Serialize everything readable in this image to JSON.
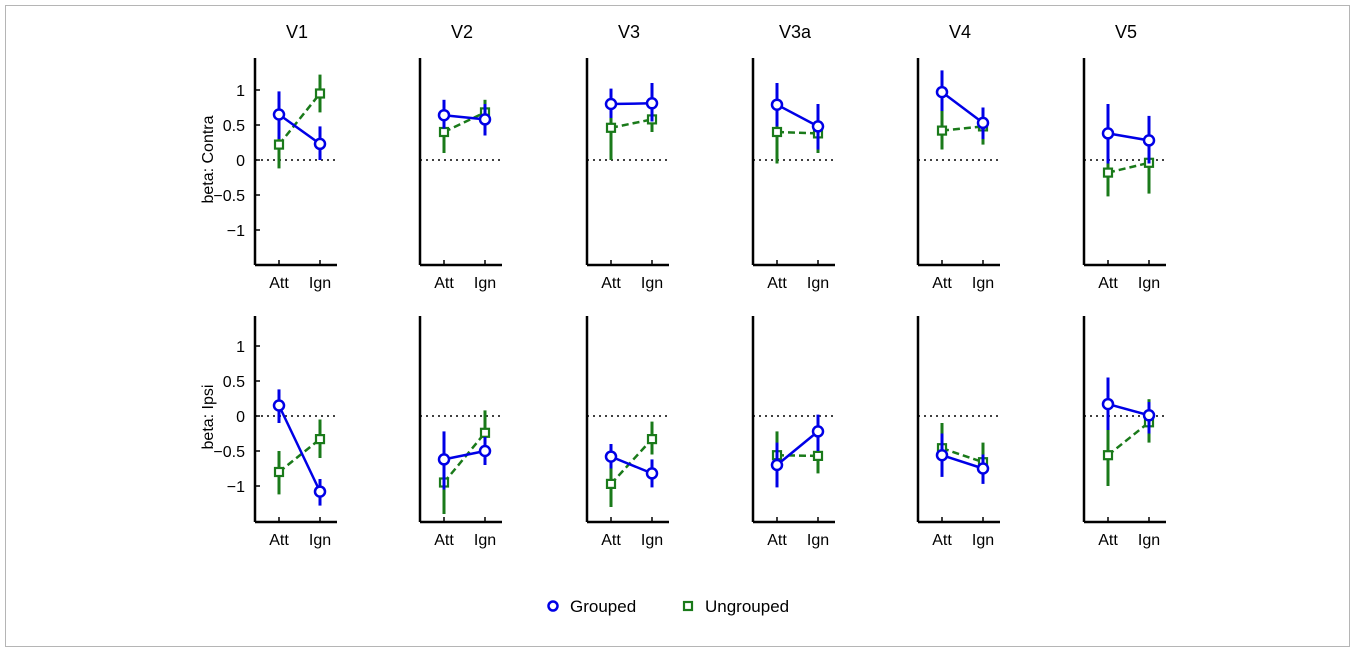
{
  "chart_data": {
    "type": "line",
    "categories": [
      "Att",
      "Ign"
    ],
    "ylim": [
      -1.5,
      1.4
    ],
    "yticks": [
      1,
      0.5,
      0,
      -0.5,
      -1
    ],
    "ytick_labels": [
      "1",
      "0.5",
      "0",
      "−0.5",
      "−1"
    ],
    "panel_titles": [
      "V1",
      "V2",
      "V3",
      "V3a",
      "V4",
      "V5"
    ],
    "row_ylabels": [
      "beta: Contra",
      "beta: Ipsi"
    ],
    "zero_reference_line": true,
    "legend": {
      "placement": "bottom-center",
      "entries": [
        {
          "label": "Grouped",
          "color": "#0000e6",
          "marker": "circle",
          "line": "solid"
        },
        {
          "label": "Ungrouped",
          "color": "#1a7a1a",
          "marker": "square",
          "line": "dashed"
        }
      ]
    },
    "panels": [
      {
        "row": "Contra",
        "title": "V1",
        "series": [
          {
            "name": "Grouped",
            "values": [
              0.65,
              0.23
            ],
            "err_low": [
              0.3,
              0.0
            ],
            "err_high": [
              0.98,
              0.48
            ]
          },
          {
            "name": "Ungrouped",
            "values": [
              0.22,
              0.95
            ],
            "err_low": [
              -0.12,
              0.68
            ],
            "err_high": [
              0.55,
              1.22
            ]
          }
        ]
      },
      {
        "row": "Contra",
        "title": "V2",
        "series": [
          {
            "name": "Grouped",
            "values": [
              0.64,
              0.58
            ],
            "err_low": [
              0.45,
              0.35
            ],
            "err_high": [
              0.86,
              0.8
            ]
          },
          {
            "name": "Ungrouped",
            "values": [
              0.4,
              0.68
            ],
            "err_low": [
              0.1,
              0.5
            ],
            "err_high": [
              0.72,
              0.86
            ]
          }
        ]
      },
      {
        "row": "Contra",
        "title": "V3",
        "series": [
          {
            "name": "Grouped",
            "values": [
              0.8,
              0.81
            ],
            "err_low": [
              0.6,
              0.55
            ],
            "err_high": [
              1.02,
              1.1
            ]
          },
          {
            "name": "Ungrouped",
            "values": [
              0.46,
              0.58
            ],
            "err_low": [
              0.0,
              0.4
            ],
            "err_high": [
              0.9,
              0.78
            ]
          }
        ]
      },
      {
        "row": "Contra",
        "title": "V3a",
        "series": [
          {
            "name": "Grouped",
            "values": [
              0.79,
              0.48
            ],
            "err_low": [
              0.48,
              0.15
            ],
            "err_high": [
              1.1,
              0.8
            ]
          },
          {
            "name": "Ungrouped",
            "values": [
              0.4,
              0.38
            ],
            "err_low": [
              -0.05,
              0.1
            ],
            "err_high": [
              0.85,
              0.65
            ]
          }
        ]
      },
      {
        "row": "Contra",
        "title": "V4",
        "series": [
          {
            "name": "Grouped",
            "values": [
              0.97,
              0.53
            ],
            "err_low": [
              0.7,
              0.3
            ],
            "err_high": [
              1.28,
              0.75
            ]
          },
          {
            "name": "Ungrouped",
            "values": [
              0.42,
              0.48
            ],
            "err_low": [
              0.15,
              0.22
            ],
            "err_high": [
              0.72,
              0.72
            ]
          }
        ]
      },
      {
        "row": "Contra",
        "title": "V5",
        "series": [
          {
            "name": "Grouped",
            "values": [
              0.38,
              0.28
            ],
            "err_low": [
              -0.05,
              -0.05
            ],
            "err_high": [
              0.8,
              0.63
            ]
          },
          {
            "name": "Ungrouped",
            "values": [
              -0.18,
              -0.04
            ],
            "err_low": [
              -0.52,
              -0.48
            ],
            "err_high": [
              0.18,
              0.4
            ]
          }
        ]
      },
      {
        "row": "Ipsi",
        "title": "V1",
        "series": [
          {
            "name": "Grouped",
            "values": [
              0.15,
              -1.08
            ],
            "err_low": [
              -0.1,
              -1.28
            ],
            "err_high": [
              0.38,
              -0.9
            ]
          },
          {
            "name": "Ungrouped",
            "values": [
              -0.8,
              -0.33
            ],
            "err_low": [
              -1.12,
              -0.6
            ],
            "err_high": [
              -0.5,
              -0.05
            ]
          }
        ]
      },
      {
        "row": "Ipsi",
        "title": "V2",
        "series": [
          {
            "name": "Grouped",
            "values": [
              -0.62,
              -0.5
            ],
            "err_low": [
              -1.05,
              -0.7
            ],
            "err_high": [
              -0.22,
              -0.3
            ]
          },
          {
            "name": "Ungrouped",
            "values": [
              -0.95,
              -0.24
            ],
            "err_low": [
              -1.4,
              -0.55
            ],
            "err_high": [
              -0.5,
              0.08
            ]
          }
        ]
      },
      {
        "row": "Ipsi",
        "title": "V3",
        "series": [
          {
            "name": "Grouped",
            "values": [
              -0.58,
              -0.82
            ],
            "err_low": [
              -0.75,
              -1.02
            ],
            "err_high": [
              -0.4,
              -0.62
            ]
          },
          {
            "name": "Ungrouped",
            "values": [
              -0.97,
              -0.33
            ],
            "err_low": [
              -1.3,
              -0.55
            ],
            "err_high": [
              -0.62,
              -0.08
            ]
          }
        ]
      },
      {
        "row": "Ipsi",
        "title": "V3a",
        "series": [
          {
            "name": "Grouped",
            "values": [
              -0.7,
              -0.22
            ],
            "err_low": [
              -1.02,
              -0.5
            ],
            "err_high": [
              -0.38,
              0.02
            ]
          },
          {
            "name": "Ungrouped",
            "values": [
              -0.56,
              -0.57
            ],
            "err_low": [
              -0.95,
              -0.82
            ],
            "err_high": [
              -0.22,
              -0.32
            ]
          }
        ]
      },
      {
        "row": "Ipsi",
        "title": "V4",
        "series": [
          {
            "name": "Grouped",
            "values": [
              -0.56,
              -0.75
            ],
            "err_low": [
              -0.87,
              -0.97
            ],
            "err_high": [
              -0.25,
              -0.55
            ]
          },
          {
            "name": "Ungrouped",
            "values": [
              -0.46,
              -0.66
            ],
            "err_low": [
              -0.78,
              -0.95
            ],
            "err_high": [
              -0.1,
              -0.38
            ]
          }
        ]
      },
      {
        "row": "Ipsi",
        "title": "V5",
        "series": [
          {
            "name": "Grouped",
            "values": [
              0.17,
              0.01
            ],
            "err_low": [
              -0.2,
              -0.25
            ],
            "err_high": [
              0.55,
              0.2
            ]
          },
          {
            "name": "Ungrouped",
            "values": [
              -0.56,
              -0.09
            ],
            "err_low": [
              -1.0,
              -0.38
            ],
            "err_high": [
              -0.12,
              0.24
            ]
          }
        ]
      }
    ]
  }
}
